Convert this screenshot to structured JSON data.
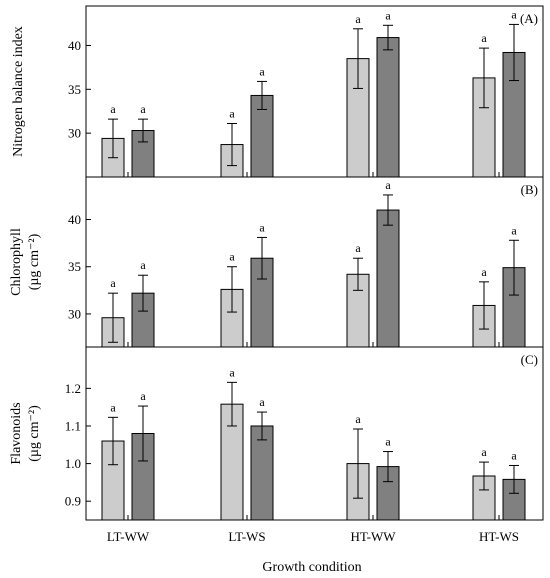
{
  "chart_data": [
    {
      "type": "bar",
      "panel_label": "(A)",
      "ylabel_lines": [
        "Nitrogen balance index"
      ],
      "categories": [
        "LT-WW",
        "LT-WS",
        "HT-WW",
        "HT-WS"
      ],
      "ylim": [
        25,
        44.5
      ],
      "yticks": [
        30,
        35,
        40
      ],
      "series": [
        {
          "color": "#cccccc",
          "values": [
            29.4,
            28.7,
            38.5,
            36.3
          ],
          "errors": [
            2.2,
            2.4,
            3.4,
            3.4
          ],
          "labels": [
            "a",
            "a",
            "a",
            "a"
          ]
        },
        {
          "color": "#808080",
          "values": [
            30.3,
            34.3,
            40.9,
            39.2
          ],
          "errors": [
            1.3,
            1.6,
            1.4,
            3.2
          ],
          "labels": [
            "a",
            "a",
            "a",
            "a"
          ]
        }
      ]
    },
    {
      "type": "bar",
      "panel_label": "(B)",
      "ylabel_lines": [
        "Chlorophyll",
        "(µg cm⁻²)"
      ],
      "categories": [
        "LT-WW",
        "LT-WS",
        "HT-WW",
        "HT-WS"
      ],
      "ylim": [
        26.5,
        44.5
      ],
      "yticks": [
        30,
        35,
        40
      ],
      "series": [
        {
          "color": "#cccccc",
          "values": [
            29.6,
            32.6,
            34.2,
            30.9
          ],
          "errors": [
            2.6,
            2.4,
            1.7,
            2.5
          ],
          "labels": [
            "a",
            "a",
            "a",
            "a"
          ]
        },
        {
          "color": "#808080",
          "values": [
            32.2,
            35.9,
            41.0,
            34.9
          ],
          "errors": [
            1.9,
            2.2,
            1.6,
            2.9
          ],
          "labels": [
            "a",
            "a",
            "a",
            "a"
          ]
        }
      ]
    },
    {
      "type": "bar",
      "panel_label": "(C)",
      "ylabel_lines": [
        "Flavonoids",
        "(µg cm⁻²)"
      ],
      "categories": [
        "LT-WW",
        "LT-WS",
        "HT-WW",
        "HT-WS"
      ],
      "ylim": [
        0.85,
        1.31
      ],
      "yticks": [
        0.9,
        1.0,
        1.1,
        1.2
      ],
      "ytick_labels": [
        "0.9",
        "1.0",
        "1.1",
        "1.2"
      ],
      "series": [
        {
          "color": "#cccccc",
          "values": [
            1.06,
            1.158,
            1.0,
            0.967
          ],
          "errors": [
            0.063,
            0.058,
            0.092,
            0.037
          ],
          "labels": [
            "a",
            "a",
            "a",
            "a"
          ]
        },
        {
          "color": "#808080",
          "values": [
            1.08,
            1.1,
            0.992,
            0.958
          ],
          "errors": [
            0.073,
            0.037,
            0.04,
            0.037
          ],
          "labels": [
            "a",
            "a",
            "a",
            "a"
          ]
        }
      ]
    }
  ],
  "xlabel": "Growth condition"
}
